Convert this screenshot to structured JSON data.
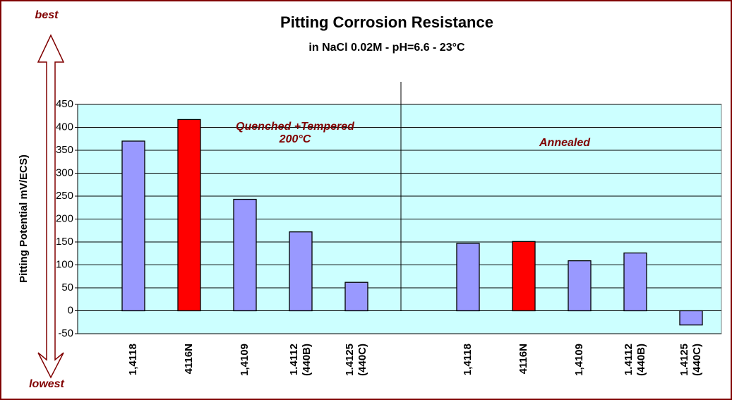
{
  "chart_data": {
    "type": "bar",
    "title": "Pitting Corrosion Resistance",
    "subtitle": "in NaCl 0.02M - pH=6.6 - 23°C",
    "y_label": "Pitting Potential mV/ECS)",
    "arrow_top": "best",
    "arrow_bottom": "lowest",
    "annotations": [
      "Quenched +Tempered",
      "200°C",
      "Annealed"
    ],
    "categories": [
      "1,4118",
      "4116N",
      "1,4109",
      "1.4112 (440B)",
      "1.4125 (440C)",
      null,
      "1,4118",
      "4116N",
      "1,4109",
      "1.4112 (440B)",
      "1.4125 (440C)"
    ],
    "values": [
      370,
      417,
      243,
      172,
      62,
      null,
      147,
      151,
      109,
      126,
      -31
    ],
    "colors": [
      "#9999ff",
      "#ff0000",
      "#9999ff",
      "#9999ff",
      "#9999ff",
      null,
      "#9999ff",
      "#ff0000",
      "#9999ff",
      "#9999ff",
      "#9999ff"
    ],
    "ylim": [
      -50,
      450
    ],
    "yticks": [
      -50,
      0,
      50,
      100,
      150,
      200,
      250,
      300,
      350,
      400,
      450
    ],
    "grid": true
  }
}
